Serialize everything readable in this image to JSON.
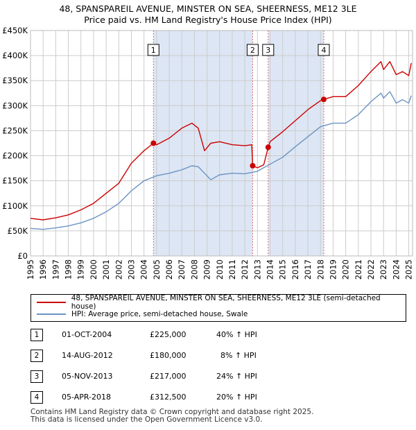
{
  "title": {
    "line1": "48, SPANSPAREIL AVENUE, MINSTER ON SEA, SHEERNESS, ME12 3LE",
    "line2": "Price paid vs. HM Land Registry's House Price Index (HPI)"
  },
  "colors": {
    "red": "#cc0000",
    "blue": "#6a93c4",
    "shade": "#dde6f4",
    "marker_line": "#e06a6a"
  },
  "chart_data": {
    "type": "line",
    "xlim": [
      1995,
      2025.3
    ],
    "ylim": [
      0,
      450000
    ],
    "y_ticks": [
      0,
      50000,
      100000,
      150000,
      200000,
      250000,
      300000,
      350000,
      400000,
      450000
    ],
    "y_tick_labels": [
      "£0",
      "£50K",
      "£100K",
      "£150K",
      "£200K",
      "£250K",
      "£300K",
      "£350K",
      "£400K",
      "£450K"
    ],
    "x_ticks": [
      1995,
      1996,
      1997,
      1998,
      1999,
      2000,
      2001,
      2002,
      2003,
      2004,
      2005,
      2006,
      2007,
      2008,
      2009,
      2010,
      2011,
      2012,
      2013,
      2014,
      2015,
      2016,
      2017,
      2018,
      2019,
      2020,
      2021,
      2022,
      2023,
      2024,
      2025
    ],
    "shaded_periods": [
      [
        2004.75,
        2012.62
      ],
      [
        2013.85,
        2018.26
      ]
    ],
    "series": [
      {
        "name": "48, SPANSPAREIL AVENUE, MINSTER ON SEA, SHEERNESS, ME12 3LE (semi-detached house)",
        "color": "red",
        "x": [
          1995,
          1996,
          1997,
          1998,
          1999,
          2000,
          2001,
          2002,
          2003,
          2004,
          2004.75,
          2005,
          2006,
          2007,
          2007.8,
          2008.3,
          2008.8,
          2009.3,
          2010,
          2011,
          2012,
          2012.55,
          2012.62,
          2013,
          2013.5,
          2013.85,
          2014,
          2015,
          2016,
          2017,
          2018,
          2018.26,
          2019,
          2020,
          2021,
          2022,
          2022.8,
          2023,
          2023.5,
          2024,
          2024.5,
          2025,
          2025.2
        ],
        "values": [
          75000,
          72000,
          76000,
          82000,
          92000,
          105000,
          125000,
          145000,
          185000,
          210000,
          225000,
          222000,
          235000,
          255000,
          265000,
          255000,
          210000,
          225000,
          228000,
          222000,
          220000,
          222000,
          180000,
          176000,
          182000,
          217000,
          228000,
          248000,
          270000,
          292000,
          310000,
          312500,
          318000,
          318000,
          340000,
          368000,
          388000,
          372000,
          388000,
          362000,
          368000,
          360000,
          385000
        ]
      },
      {
        "name": "HPI: Average price, semi-detached house, Swale",
        "color": "blue",
        "x": [
          1995,
          1996,
          1997,
          1998,
          1999,
          2000,
          2001,
          2002,
          2003,
          2004,
          2005,
          2006,
          2007,
          2007.8,
          2008.3,
          2008.8,
          2009.3,
          2010,
          2011,
          2012,
          2013,
          2014,
          2015,
          2016,
          2017,
          2018,
          2019,
          2020,
          2021,
          2022,
          2022.8,
          2023,
          2023.5,
          2024,
          2024.5,
          2025,
          2025.2
        ],
        "values": [
          55000,
          53000,
          56000,
          60000,
          66000,
          75000,
          88000,
          105000,
          130000,
          150000,
          160000,
          165000,
          172000,
          180000,
          178000,
          165000,
          152000,
          162000,
          165000,
          164000,
          169000,
          183000,
          197000,
          218000,
          238000,
          258000,
          265000,
          265000,
          282000,
          308000,
          325000,
          315000,
          328000,
          305000,
          312000,
          305000,
          320000
        ]
      }
    ],
    "sales": [
      {
        "n": "1",
        "x": 2004.75,
        "price": 225000
      },
      {
        "n": "2",
        "x": 2012.62,
        "price": 180000
      },
      {
        "n": "3",
        "x": 2013.85,
        "price": 217000
      },
      {
        "n": "4",
        "x": 2018.26,
        "price": 312500
      }
    ]
  },
  "legend": {
    "red_label": "48, SPANSPAREIL AVENUE, MINSTER ON SEA, SHEERNESS, ME12 3LE (semi-detached house)",
    "blue_label": "HPI: Average price, semi-detached house, Swale"
  },
  "transactions": [
    {
      "n": "1",
      "date": "01-OCT-2004",
      "price": "£225,000",
      "hpi": "40% ↑ HPI"
    },
    {
      "n": "2",
      "date": "14-AUG-2012",
      "price": "£180,000",
      "hpi": "8% ↑ HPI"
    },
    {
      "n": "3",
      "date": "05-NOV-2013",
      "price": "£217,000",
      "hpi": "24% ↑ HPI"
    },
    {
      "n": "4",
      "date": "05-APR-2018",
      "price": "£312,500",
      "hpi": "20% ↑ HPI"
    }
  ],
  "footer": {
    "line1": "Contains HM Land Registry data © Crown copyright and database right 2025.",
    "line2": "This data is licensed under the Open Government Licence v3.0."
  }
}
